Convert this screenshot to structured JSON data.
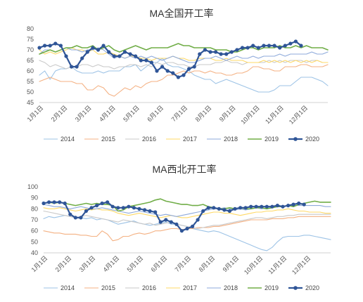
{
  "chart_data": [
    {
      "type": "line",
      "title": "MA全国开工率",
      "ylim": [
        45,
        80
      ],
      "yticks": [
        45,
        50,
        55,
        60,
        65,
        70,
        75,
        80
      ],
      "x_ticks": [
        "1月1日",
        "2月1日",
        "3月1日",
        "4月1日",
        "5月1日",
        "6月1日",
        "7月1日",
        "8月1日",
        "9月1日",
        "10月1日",
        "11月1日",
        "12月1日"
      ],
      "legend_position": "bottom",
      "grid": false,
      "series": [
        {
          "name": "2014",
          "color": "#9dc3e6",
          "width": 1.1,
          "markers": false,
          "values": [
            58,
            60,
            56,
            60,
            61,
            61,
            62,
            60,
            59,
            59,
            59,
            60,
            59,
            60,
            60,
            60,
            62,
            62,
            63,
            60,
            62,
            64,
            64,
            66,
            63,
            62,
            62,
            61,
            60,
            58,
            57,
            56,
            56,
            54,
            55,
            56,
            55,
            54,
            53,
            52,
            51,
            50,
            50,
            50,
            51,
            53,
            53,
            53,
            55,
            57,
            57,
            57,
            56,
            55,
            53
          ]
        },
        {
          "name": "2015",
          "color": "#f4b183",
          "width": 1.1,
          "markers": false,
          "values": [
            55,
            56,
            57,
            56,
            55,
            55,
            55,
            54,
            54,
            51,
            51,
            53,
            52,
            49,
            48,
            50,
            52,
            51,
            53,
            52,
            54,
            55,
            55,
            56,
            58,
            58,
            59,
            60,
            59,
            60,
            60,
            59,
            60,
            59,
            59,
            58,
            58,
            59,
            59,
            60,
            62,
            62,
            61,
            61,
            60,
            60,
            62,
            62,
            62,
            63,
            63,
            62,
            62,
            62,
            63
          ]
        },
        {
          "name": "2016",
          "color": "#c9c9c9",
          "width": 1.1,
          "markers": false,
          "values": [
            65,
            64,
            62,
            63,
            62,
            61,
            62,
            62,
            63,
            63,
            62,
            63,
            62,
            62,
            61,
            62,
            62,
            63,
            63,
            62,
            63,
            62,
            64,
            63,
            64,
            64,
            63,
            63,
            62,
            62,
            63,
            63,
            63,
            64,
            64,
            65,
            64,
            64,
            63,
            64,
            64,
            64,
            64,
            65,
            64,
            65,
            64,
            65,
            65,
            65,
            64,
            65,
            65,
            64,
            64
          ]
        },
        {
          "name": "2017",
          "color": "#ffd966",
          "width": 1.1,
          "markers": false,
          "values": [
            70,
            68,
            69,
            68,
            69,
            70,
            71,
            70,
            70,
            69,
            70,
            68,
            68,
            69,
            68,
            67,
            66,
            67,
            67,
            66,
            66,
            65,
            66,
            66,
            66,
            67,
            66,
            66,
            65,
            65,
            66,
            66,
            66,
            65,
            65,
            66,
            65,
            65,
            65,
            64,
            64,
            64,
            65,
            64,
            65,
            64,
            65,
            64,
            65,
            64,
            65,
            64,
            65,
            64,
            64
          ]
        },
        {
          "name": "2018",
          "color": "#8eaadb",
          "width": 1.1,
          "markers": false,
          "values": [
            68,
            70,
            70,
            69,
            70,
            71,
            70,
            70,
            69,
            70,
            70,
            71,
            70,
            68,
            66,
            67,
            66,
            67,
            66,
            67,
            66,
            67,
            66,
            65,
            66,
            67,
            66,
            65,
            64,
            64,
            65,
            66,
            66,
            67,
            66,
            65,
            66,
            67,
            66,
            66,
            67,
            66,
            67,
            67,
            67,
            68,
            67,
            68,
            68,
            68,
            68,
            69,
            68,
            68,
            69
          ]
        },
        {
          "name": "2019",
          "color": "#70ad47",
          "width": 1.6,
          "markers": false,
          "values": [
            68,
            69,
            70,
            69,
            70,
            71,
            71,
            72,
            71,
            71,
            72,
            70,
            71,
            72,
            70,
            69,
            70,
            71,
            72,
            71,
            70,
            71,
            71,
            71,
            71,
            72,
            73,
            72,
            72,
            71,
            71,
            71,
            71,
            70,
            70,
            70,
            69,
            69,
            70,
            71,
            71,
            70,
            71,
            71,
            71,
            72,
            71,
            71,
            72,
            71,
            72,
            71,
            71,
            71,
            70
          ]
        },
        {
          "name": "2020",
          "color": "#2f5597",
          "width": 2.2,
          "markers": true,
          "values": [
            71,
            72,
            72,
            73,
            72,
            67,
            62,
            62,
            66,
            69,
            71,
            70,
            72,
            69,
            67,
            67,
            69,
            68,
            67,
            65,
            65,
            64,
            60,
            62,
            60,
            59,
            57,
            58,
            61,
            62,
            68,
            70,
            69,
            69,
            68,
            68,
            69,
            70,
            71,
            71,
            72,
            71,
            72,
            72,
            72,
            71,
            72,
            73,
            74,
            72,
            null,
            null,
            null,
            null,
            null
          ]
        }
      ]
    },
    {
      "type": "line",
      "title": "MA西北开工率",
      "ylim": [
        40,
        100
      ],
      "yticks": [
        40,
        50,
        60,
        70,
        80,
        90,
        100
      ],
      "x_ticks": [
        "1月1日",
        "2月1日",
        "3月1日",
        "4月1日",
        "5月1日",
        "6月1日",
        "7月1日",
        "8月1日",
        "9月1日",
        "10月1日",
        "11月1日",
        "12月1日"
      ],
      "legend_position": "bottom",
      "grid": false,
      "series": [
        {
          "name": "2014",
          "color": "#9dc3e6",
          "width": 1.1,
          "markers": false,
          "values": [
            71,
            73,
            72,
            73,
            74,
            73,
            72,
            72,
            71,
            72,
            70,
            71,
            70,
            68,
            66,
            67,
            68,
            69,
            67,
            66,
            65,
            66,
            67,
            68,
            66,
            66,
            65,
            64,
            62,
            61,
            60,
            59,
            60,
            59,
            57,
            55,
            53,
            51,
            49,
            47,
            45,
            43,
            42,
            45,
            50,
            54,
            55,
            55,
            55,
            56,
            56,
            55,
            54,
            53,
            52
          ]
        },
        {
          "name": "2015",
          "color": "#f4b183",
          "width": 1.1,
          "markers": false,
          "values": [
            60,
            59,
            58,
            58,
            57,
            57,
            57,
            56,
            56,
            55,
            55,
            60,
            57,
            51,
            52,
            55,
            55,
            57,
            58,
            57,
            58,
            60,
            60,
            61,
            62,
            62,
            61,
            62,
            62,
            63,
            63,
            63,
            64,
            64,
            65,
            66,
            67,
            68,
            69,
            70,
            70,
            70,
            70,
            71,
            71,
            71,
            72,
            72,
            73,
            73,
            73,
            73,
            73,
            73,
            73
          ]
        },
        {
          "name": "2016",
          "color": "#c9c9c9",
          "width": 1.1,
          "markers": false,
          "values": [
            78,
            77,
            76,
            75,
            74,
            73,
            72,
            73,
            74,
            73,
            72,
            71,
            70,
            69,
            68,
            70,
            69,
            68,
            67,
            66,
            67,
            65,
            66,
            67,
            68,
            66,
            65,
            64,
            63,
            62,
            63,
            64,
            65,
            65,
            66,
            67,
            68,
            69,
            70,
            71,
            72,
            72,
            71,
            72,
            73,
            73,
            74,
            74,
            75,
            75,
            75,
            75,
            75,
            75,
            75
          ]
        },
        {
          "name": "2017",
          "color": "#ffd966",
          "width": 1.1,
          "markers": false,
          "values": [
            81,
            80,
            80,
            81,
            80,
            79,
            78,
            79,
            80,
            79,
            80,
            79,
            79,
            78,
            76,
            75,
            74,
            75,
            76,
            75,
            74,
            73,
            72,
            73,
            74,
            73,
            72,
            72,
            73,
            74,
            75,
            76,
            77,
            77,
            76,
            76,
            75,
            74,
            75,
            76,
            77,
            77,
            78,
            78,
            79,
            79,
            80,
            79,
            78,
            78,
            77,
            77,
            77,
            76,
            76
          ]
        },
        {
          "name": "2018",
          "color": "#8eaadb",
          "width": 1.1,
          "markers": false,
          "values": [
            84,
            83,
            82,
            82,
            81,
            80,
            81,
            82,
            81,
            80,
            80,
            81,
            80,
            79,
            78,
            77,
            76,
            77,
            78,
            77,
            76,
            75,
            74,
            75,
            74,
            73,
            74,
            75,
            76,
            77,
            78,
            79,
            80,
            80,
            81,
            80,
            79,
            80,
            79,
            80,
            81,
            80,
            81,
            82,
            82,
            82,
            83,
            83,
            83,
            83,
            83,
            83,
            83,
            82,
            82
          ]
        },
        {
          "name": "2019",
          "color": "#70ad47",
          "width": 1.6,
          "markers": false,
          "values": [
            85,
            86,
            85,
            86,
            85,
            84,
            83,
            84,
            85,
            84,
            85,
            84,
            84,
            83,
            78,
            79,
            82,
            83,
            84,
            85,
            86,
            88,
            89,
            87,
            86,
            85,
            84,
            84,
            83,
            83,
            84,
            82,
            81,
            80,
            80,
            81,
            80,
            81,
            80,
            80,
            81,
            81,
            80,
            81,
            82,
            82,
            83,
            82,
            84,
            85,
            86,
            87,
            86,
            86,
            86
          ]
        },
        {
          "name": "2020",
          "color": "#2f5597",
          "width": 2.2,
          "markers": true,
          "values": [
            85,
            86,
            86,
            86,
            85,
            75,
            72,
            72,
            78,
            81,
            83,
            85,
            86,
            82,
            81,
            81,
            82,
            81,
            80,
            79,
            78,
            77,
            68,
            70,
            68,
            66,
            60,
            62,
            64,
            70,
            78,
            81,
            81,
            80,
            79,
            78,
            80,
            81,
            81,
            82,
            82,
            82,
            82,
            82,
            83,
            82,
            83,
            84,
            85,
            84,
            null,
            null,
            null,
            null,
            null
          ]
        }
      ]
    }
  ]
}
